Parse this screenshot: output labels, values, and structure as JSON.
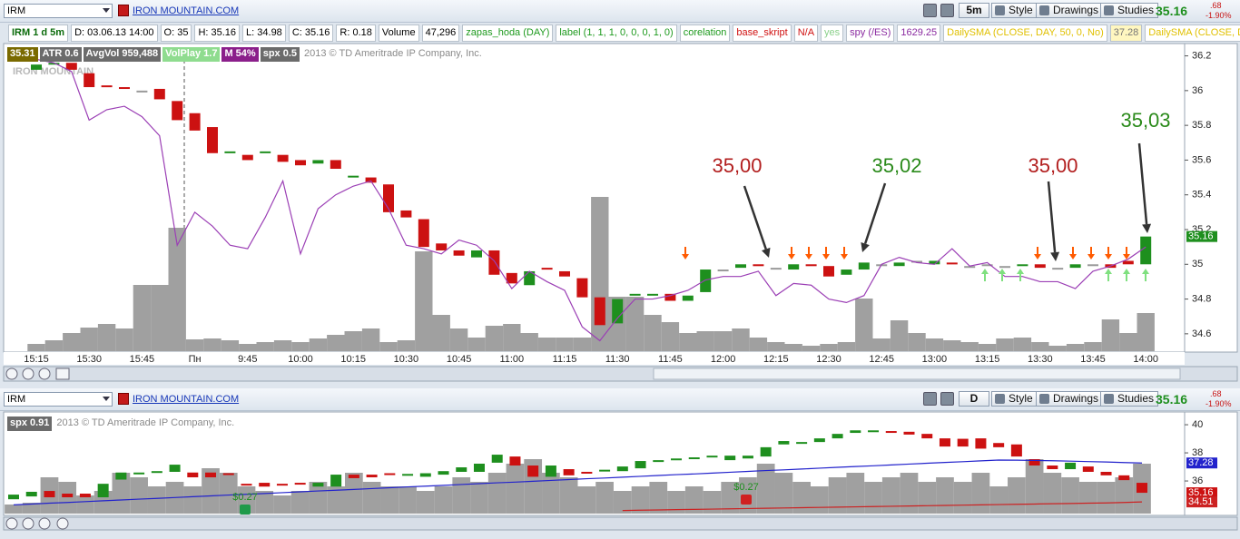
{
  "toolbar": {
    "symbol": "IRM",
    "company": "IRON MOUNTAIN.COM",
    "timeframe": "5m",
    "style": "Style",
    "drawings": "Drawings",
    "studies": "Studies",
    "last": "35.16",
    "change": ".68",
    "change_pct": "-1.90%"
  },
  "info_bar": [
    "IRM 1 d 5m",
    "D: 03.06.13 14:00",
    "O: 35",
    "H: 35.16",
    "L: 34.98",
    "C: 35.16",
    "R: 0.18",
    "Volume",
    "47,296",
    "zapas_hoda (DAY)",
    "label (1, 1, 1, 0, 0, 0, 1, 0)",
    "corelation",
    "base_skript",
    "N/A",
    "yes",
    "spy (/ES)",
    "1629.25",
    "DailySMA (CLOSE, DAY, 50, 0, No)",
    "37.28",
    "DailySMA (CLOSE, DA"
  ],
  "lower_toolbar": {
    "symbol": "IRM",
    "company": "IRON MOUNTAIN.COM",
    "timeframe": "D",
    "style": "Style",
    "drawings": "Drawings",
    "studies": "Studies",
    "last": "35.16",
    "change": ".68",
    "change_pct": "-1.90%"
  },
  "chart_data": [
    {
      "type": "candlestick",
      "badges": [
        "35.31",
        "ATR 0.6",
        "AvgVol 959,488",
        "VolPlay 1.7",
        "M 54%"
      ],
      "copyright": "2013 © TD Ameritrade IP Company, Inc.",
      "watermark": "IRON MOUNTAIN",
      "categories": [
        "15:15",
        null,
        null,
        "15:30",
        null,
        null,
        "15:45",
        null,
        null,
        "Пн",
        null,
        null,
        "9:45",
        null,
        null,
        "10:00",
        null,
        null,
        "10:15",
        null,
        null,
        "10:30",
        null,
        null,
        "10:45",
        null,
        null,
        "11:00",
        null,
        null,
        "11:15",
        null,
        null,
        "11:30",
        null,
        null,
        "11:45",
        null,
        null,
        "12:00",
        null,
        null,
        "12:15",
        null,
        null,
        "12:30",
        null,
        null,
        "12:45",
        null,
        null,
        "13:00",
        null,
        null,
        "13:15",
        null,
        null,
        "13:30",
        null,
        null,
        "13:45",
        null,
        null,
        "14:00"
      ],
      "open": [
        36.12,
        36.15,
        36.16,
        36.1,
        36.03,
        36.02,
        36.0,
        36.01,
        35.94,
        35.87,
        35.79,
        35.64,
        35.63,
        35.64,
        35.63,
        35.6,
        35.58,
        35.6,
        35.5,
        35.5,
        35.46,
        35.31,
        35.26,
        35.12,
        35.08,
        35.04,
        35.08,
        34.95,
        34.88,
        34.98,
        34.96,
        34.92,
        34.81,
        34.66,
        34.82,
        34.82,
        34.83,
        34.79,
        34.84,
        34.97,
        34.98,
        35.0,
        34.98,
        34.97,
        35.0,
        34.99,
        34.94,
        34.97,
        35.0,
        34.99,
        35.02,
        35.0,
        35.01,
        34.99,
        35.0,
        34.99,
        34.99,
        35.0,
        34.98,
        34.98,
        35.0,
        35.0,
        35.02,
        35.0
      ],
      "close": [
        36.15,
        36.16,
        36.12,
        36.02,
        36.02,
        36.01,
        36.0,
        35.95,
        35.83,
        35.77,
        35.64,
        35.65,
        35.6,
        35.65,
        35.59,
        35.57,
        35.6,
        35.55,
        35.51,
        35.47,
        35.3,
        35.27,
        35.1,
        35.08,
        35.05,
        35.08,
        34.94,
        34.89,
        34.96,
        34.97,
        34.93,
        34.81,
        34.65,
        34.8,
        34.83,
        34.83,
        34.79,
        34.82,
        34.97,
        34.97,
        35.0,
        34.99,
        34.98,
        35.0,
        34.99,
        34.93,
        34.97,
        35.01,
        35.0,
        35.01,
        35.02,
        35.02,
        35.0,
        34.99,
        35.0,
        34.99,
        35.0,
        34.98,
        34.98,
        35.0,
        35.0,
        34.98,
        35.0,
        35.16
      ],
      "volume": [
        8,
        12,
        20,
        26,
        30,
        25,
        73,
        73,
        136,
        13,
        14,
        12,
        8,
        10,
        12,
        10,
        14,
        18,
        22,
        25,
        10,
        12,
        110,
        40,
        25,
        15,
        28,
        30,
        20,
        15,
        15,
        15,
        170,
        60,
        60,
        40,
        32,
        20,
        22,
        22,
        25,
        15,
        10,
        8,
        6,
        8,
        10,
        58,
        14,
        34,
        20,
        14,
        12,
        10,
        8,
        14,
        15,
        10,
        6,
        8,
        10,
        35,
        20,
        42
      ],
      "volume_color": "#a0a0a0",
      "up_color": "#1e8f1e",
      "down_color": "#cc1111",
      "flat_color": "#9a9a9a",
      "series": [
        {
          "name": "spx 0.5",
          "color": "#9b3fb5",
          "values": [
            36.18,
            36.16,
            36.11,
            35.83,
            35.89,
            35.91,
            35.85,
            35.74,
            35.11,
            35.3,
            35.22,
            35.11,
            35.09,
            35.27,
            35.48,
            35.06,
            35.32,
            35.4,
            35.45,
            35.48,
            35.32,
            35.11,
            35.09,
            35.06,
            35.14,
            35.11,
            35.02,
            34.86,
            34.96,
            34.9,
            34.85,
            34.64,
            34.56,
            34.69,
            34.8,
            34.8,
            34.82,
            34.85,
            34.91,
            34.93,
            34.93,
            34.96,
            34.82,
            34.89,
            34.88,
            34.8,
            34.78,
            34.82,
            35.0,
            35.04,
            35.01,
            35.0,
            35.09,
            34.99,
            35.01,
            34.93,
            34.93,
            34.9,
            34.9,
            34.86,
            34.96,
            34.99,
            35.03,
            35.1
          ]
        }
      ],
      "ylim": [
        34.5,
        36.25
      ],
      "yticks": [
        34.6,
        34.8,
        35,
        35.2,
        35.4,
        35.6,
        35.8,
        36,
        36.2
      ],
      "annotations": [
        {
          "text": "35,00",
          "color": "#b21e1e"
        },
        {
          "text": "35,02",
          "color": "#2a8a1a"
        },
        {
          "text": "35,00",
          "color": "#b21e1e"
        },
        {
          "text": "35,03",
          "color": "#2a8a1a"
        }
      ]
    },
    {
      "type": "candlestick",
      "badges": [
        "spx 0.91"
      ],
      "copyright": "2013 © TD Ameritrade IP Company, Inc.",
      "open": [
        34.7,
        34.9,
        35.29,
        35.1,
        35.1,
        34.84,
        36.1,
        36.55,
        36.65,
        36.65,
        36.6,
        36.6,
        36.55,
        35.8,
        35.87,
        35.8,
        35.87,
        35.6,
        35.6,
        36.45,
        36.45,
        36.55,
        36.4,
        36.3,
        36.45,
        36.65,
        36.65,
        37.3,
        37.74,
        37.1,
        36.3,
        36.84,
        36.65,
        36.7,
        36.7,
        36.9,
        37.42,
        37.5,
        37.6,
        37.74,
        37.48,
        37.6,
        37.74,
        38.6,
        38.74,
        38.77,
        39.03,
        39.42,
        39.55,
        39.55,
        39.5,
        39.35,
        39.03,
        39.0,
        39.03,
        38.7,
        38.6,
        37.55,
        37.1,
        36.84,
        37.03,
        36.65,
        36.4,
        35.87
      ],
      "close": [
        35.03,
        35.23,
        34.84,
        34.84,
        34.84,
        35.8,
        36.6,
        36.6,
        36.7,
        37.16,
        36.26,
        36.26,
        36.5,
        35.7,
        35.6,
        35.7,
        35.8,
        35.87,
        36.45,
        36.2,
        36.26,
        36.5,
        36.5,
        36.55,
        36.7,
        36.97,
        37.23,
        37.87,
        37.1,
        36.3,
        37.1,
        36.4,
        36.55,
        36.8,
        37.03,
        37.42,
        37.48,
        37.6,
        37.68,
        37.8,
        37.8,
        37.8,
        38.4,
        38.84,
        38.77,
        39.03,
        39.35,
        39.6,
        39.6,
        39.45,
        39.3,
        39.03,
        38.45,
        38.45,
        38.3,
        38.4,
        37.74,
        37.1,
        36.84,
        37.3,
        36.65,
        36.4,
        36.06,
        35.16
      ],
      "volume": [
        10,
        12,
        40,
        35,
        20,
        25,
        45,
        40,
        30,
        35,
        30,
        50,
        45,
        30,
        25,
        20,
        25,
        35,
        30,
        45,
        35,
        30,
        30,
        25,
        30,
        40,
        35,
        45,
        55,
        60,
        45,
        40,
        30,
        35,
        25,
        30,
        35,
        25,
        30,
        25,
        35,
        40,
        55,
        45,
        35,
        30,
        40,
        45,
        35,
        40,
        45,
        35,
        40,
        35,
        45,
        30,
        40,
        60,
        45,
        40,
        35,
        35,
        40,
        55
      ],
      "volume_color": "#a0a0a0",
      "up_color": "#1e8f1e",
      "down_color": "#cc1111",
      "flat_color": "#9a9a9a",
      "lines": [
        {
          "color": "#2222cc",
          "values": [
            34.3,
            34.36,
            34.42,
            34.47,
            34.53,
            34.59,
            34.65,
            34.71,
            34.76,
            34.82,
            34.88,
            34.94,
            35.0,
            35.05,
            35.11,
            35.17,
            35.23,
            35.29,
            35.34,
            35.4,
            35.46,
            35.52,
            35.58,
            35.63,
            35.69,
            35.75,
            35.81,
            35.87,
            35.92,
            35.98,
            36.04,
            36.1,
            36.16,
            36.21,
            36.27,
            36.33,
            36.39,
            36.45,
            36.5,
            36.56,
            36.62,
            36.68,
            36.74,
            36.79,
            36.85,
            36.91,
            36.97,
            37.03,
            37.08,
            37.14,
            37.2,
            37.26,
            37.32,
            37.37,
            37.43,
            37.49,
            37.48,
            37.46,
            37.44,
            37.41,
            37.38,
            37.35,
            37.31,
            37.28
          ]
        },
        {
          "color": "#cc2222",
          "values": [
            null,
            null,
            null,
            null,
            null,
            null,
            null,
            null,
            null,
            null,
            null,
            null,
            null,
            null,
            null,
            null,
            null,
            null,
            null,
            null,
            null,
            null,
            null,
            null,
            null,
            null,
            null,
            null,
            null,
            null,
            null,
            null,
            null,
            null,
            33.9,
            33.92,
            33.94,
            33.96,
            33.98,
            34.0,
            34.02,
            34.04,
            34.06,
            34.08,
            34.1,
            34.12,
            34.14,
            34.16,
            34.18,
            34.2,
            34.22,
            34.24,
            34.26,
            34.28,
            34.3,
            34.32,
            34.34,
            34.36,
            34.38,
            34.4,
            34.42,
            34.44,
            34.47,
            34.51
          ]
        }
      ],
      "dividends": [
        "$0.27",
        "$0.27"
      ],
      "ylim": [
        33.68,
        40.65
      ],
      "yticks": [
        36,
        38,
        40
      ]
    }
  ]
}
